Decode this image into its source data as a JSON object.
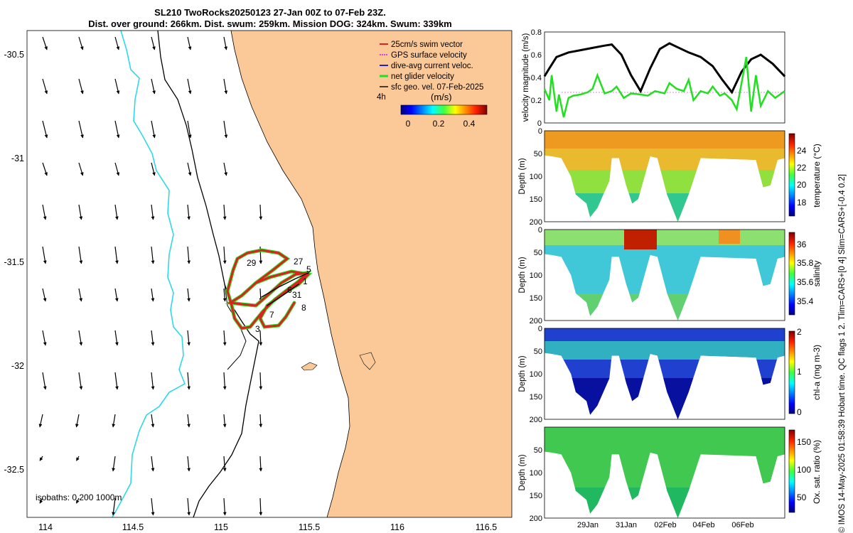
{
  "header": {
    "title_line1": "SL210 TwoRocks20250123 27-Jan 00Z to 07-Feb 23Z.",
    "title_line2": "Dist. over ground: 266km. Dist. swum: 259km. Mission DOG: 324km. Swum: 339km"
  },
  "map": {
    "legend": [
      {
        "label": "25cm/s swim vector",
        "color": "#e02020"
      },
      {
        "label": "GPS surface velocity",
        "color": "#e040e0"
      },
      {
        "label": "dive-avg current veloc.",
        "color": "#2020d0"
      },
      {
        "label": "net glider velocity",
        "color": "#20e020"
      },
      {
        "label": "sfc geo. vel. 07-Feb-2025",
        "color": "#000000"
      }
    ],
    "duration_label": "4h",
    "colorbar_title": "(m/s)",
    "colorbar_ticks": [
      "0",
      "0.2",
      "0.4"
    ],
    "x_ticks": [
      "114",
      "114.5",
      "115",
      "115.5",
      "116",
      "116.5"
    ],
    "y_ticks": [
      "-30.5",
      "-31",
      "-31.5",
      "-32",
      "-32.5"
    ],
    "isobaths_label": "isobaths: 0   200  1000m",
    "track_labels": [
      "29",
      "27",
      "5",
      "1",
      "6",
      "31",
      "8",
      "7",
      "3"
    ],
    "colors": {
      "land": "#fbc898",
      "isobath200": "#000000",
      "isobath1000": "#30d8e8",
      "track": "#e02020"
    }
  },
  "chart_data": [
    {
      "type": "line",
      "title": "",
      "xlabel": "",
      "ylabel": "velocity magnitude (m/s)",
      "ylim": [
        0,
        0.8
      ],
      "y_ticks": [
        "0",
        "0.2",
        "0.4",
        "0.6",
        "0.8"
      ],
      "series": [
        {
          "name": "sfc geo speed",
          "color": "#000000",
          "x": [
            0,
            0.02,
            0.05,
            0.1,
            0.15,
            0.2,
            0.25,
            0.28,
            0.32,
            0.36,
            0.4,
            0.44,
            0.48,
            0.52,
            0.55,
            0.6,
            0.65,
            0.7,
            0.74,
            0.78,
            0.82,
            0.86,
            0.9,
            0.95,
            1.0
          ],
          "values": [
            0.41,
            0.48,
            0.58,
            0.62,
            0.64,
            0.66,
            0.68,
            0.69,
            0.6,
            0.42,
            0.28,
            0.48,
            0.65,
            0.7,
            0.67,
            0.62,
            0.58,
            0.5,
            0.38,
            0.27,
            0.45,
            0.56,
            0.6,
            0.52,
            0.41
          ]
        },
        {
          "name": "net glider speed",
          "color": "#20e020",
          "x": [
            0,
            0.02,
            0.03,
            0.05,
            0.06,
            0.08,
            0.1,
            0.12,
            0.15,
            0.18,
            0.2,
            0.22,
            0.25,
            0.28,
            0.3,
            0.33,
            0.36,
            0.4,
            0.43,
            0.46,
            0.5,
            0.52,
            0.55,
            0.58,
            0.6,
            0.62,
            0.65,
            0.68,
            0.7,
            0.73,
            0.75,
            0.78,
            0.8,
            0.82,
            0.84,
            0.86,
            0.88,
            0.9,
            0.93,
            0.96,
            1.0
          ],
          "values": [
            0.3,
            0.2,
            0.42,
            0.1,
            0.25,
            0.05,
            0.22,
            0.24,
            0.25,
            0.27,
            0.3,
            0.42,
            0.26,
            0.28,
            0.32,
            0.22,
            0.26,
            0.25,
            0.24,
            0.28,
            0.26,
            0.35,
            0.3,
            0.28,
            0.38,
            0.2,
            0.28,
            0.26,
            0.32,
            0.24,
            0.26,
            0.2,
            0.12,
            0.35,
            0.58,
            0.1,
            0.42,
            0.15,
            0.28,
            0.22,
            0.28
          ]
        }
      ]
    },
    {
      "type": "heatmap",
      "ylabel": "Depth (m)",
      "ylim": [
        200,
        0
      ],
      "y_ticks": [
        "0",
        "50",
        "100",
        "150",
        "200"
      ],
      "colorbar_label": "temperature (°C)",
      "colorbar_ticks": [
        "18",
        "20",
        "22",
        "24"
      ],
      "clim": [
        16.5,
        25.5
      ]
    },
    {
      "type": "heatmap",
      "ylabel": "Depth (m)",
      "ylim": [
        200,
        0
      ],
      "y_ticks": [
        "0",
        "50",
        "100",
        "150",
        "200"
      ],
      "colorbar_label": "salinity",
      "colorbar_ticks": [
        "35.4",
        "35.6",
        "35.8",
        "36"
      ],
      "clim": [
        35.3,
        36.15
      ]
    },
    {
      "type": "heatmap",
      "ylabel": "Depth (m)",
      "ylim": [
        200,
        0
      ],
      "y_ticks": [
        "0",
        "50",
        "100",
        "150",
        "200"
      ],
      "colorbar_label": "chl-a (mg m-3)",
      "colorbar_ticks": [
        "0",
        "1",
        "2"
      ],
      "clim": [
        0,
        2
      ]
    },
    {
      "type": "heatmap",
      "ylabel": "Depth (m)",
      "ylim": [
        200,
        0
      ],
      "y_ticks": [
        "50",
        "100",
        "150",
        "200"
      ],
      "colorbar_label": "Ox. sat. ratio (%)",
      "colorbar_ticks": [
        "50",
        "100",
        "150"
      ],
      "clim": [
        20,
        180
      ]
    }
  ],
  "time_axis": {
    "ticks": [
      "29Jan",
      "31Jan",
      "02Feb",
      "04Feb",
      "06Feb"
    ]
  },
  "side_text": "© IMOS 14-May-2025 01:58:39 Hobart time. QC flags 1  2. Tlim=CARS+[0 4] Slim=CARS+[-0.4 0.2]"
}
